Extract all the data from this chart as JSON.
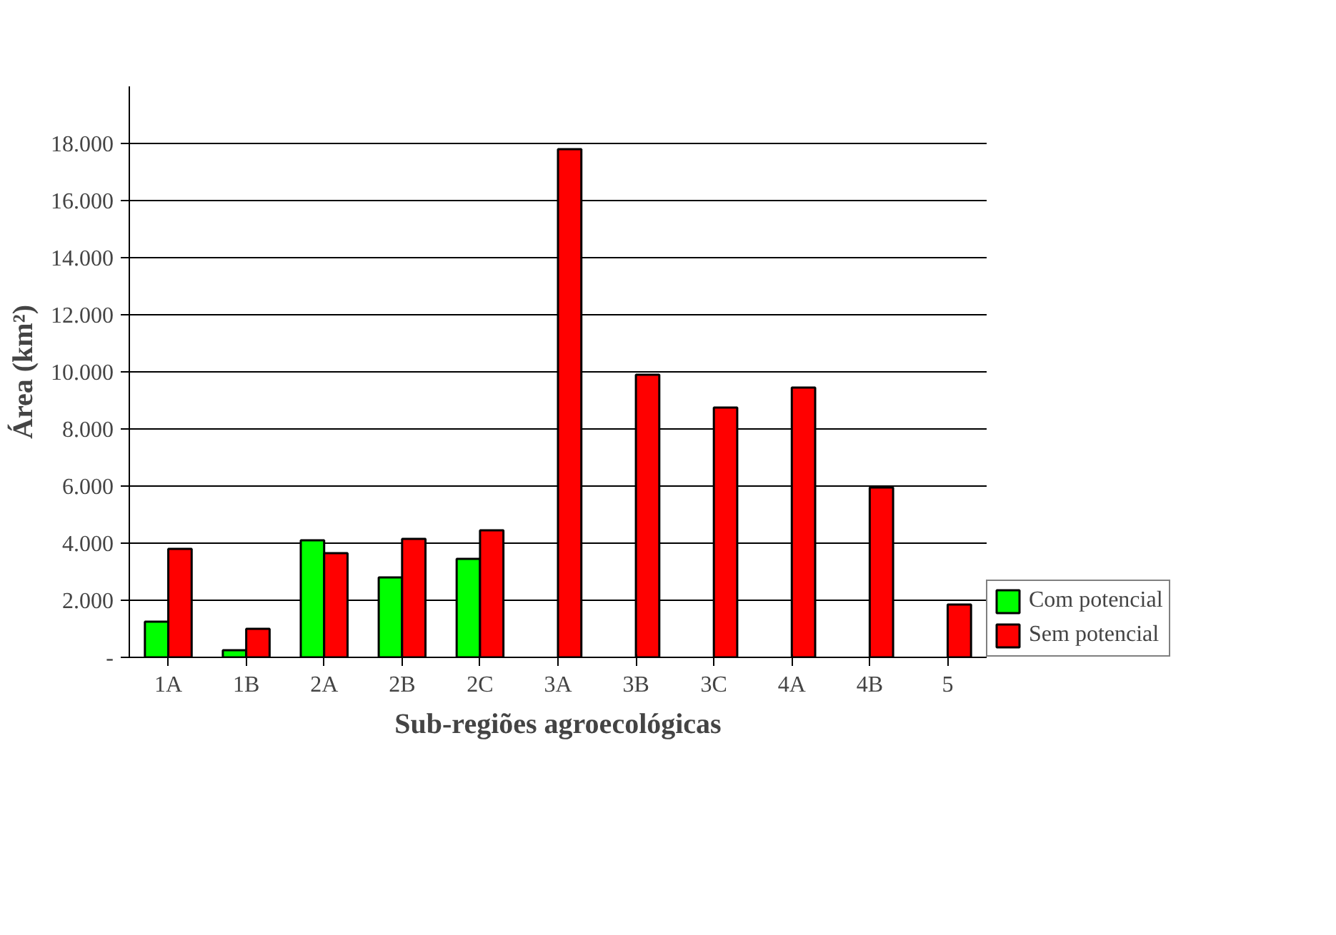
{
  "chart_data": {
    "type": "bar",
    "xlabel": "Sub-regiões agroecológicas",
    "ylabel": "Área (km²)",
    "categories": [
      "1A",
      "1B",
      "2A",
      "2B",
      "2C",
      "3A",
      "3B",
      "3C",
      "4A",
      "4B",
      "5"
    ],
    "series": [
      {
        "name": "Com potencial",
        "color": "#00ff00",
        "values": [
          1250,
          250,
          4100,
          2800,
          3450,
          null,
          null,
          null,
          null,
          null,
          null
        ]
      },
      {
        "name": "Sem potencial",
        "color": "#ff0000",
        "values": [
          3800,
          1000,
          3650,
          4150,
          4450,
          17800,
          9900,
          8750,
          9450,
          5950,
          1850
        ]
      }
    ],
    "ylim": [
      0,
      20000
    ],
    "yticks": [
      {
        "value": 0,
        "label": "-"
      },
      {
        "value": 2000,
        "label": "2.000"
      },
      {
        "value": 4000,
        "label": "4.000"
      },
      {
        "value": 6000,
        "label": "6.000"
      },
      {
        "value": 8000,
        "label": "8.000"
      },
      {
        "value": 10000,
        "label": "10.000"
      },
      {
        "value": 12000,
        "label": "12.000"
      },
      {
        "value": 14000,
        "label": "14.000"
      },
      {
        "value": 16000,
        "label": "16.000"
      },
      {
        "value": 18000,
        "label": "18.000"
      }
    ],
    "grid": "y",
    "legend": "bottom right"
  }
}
